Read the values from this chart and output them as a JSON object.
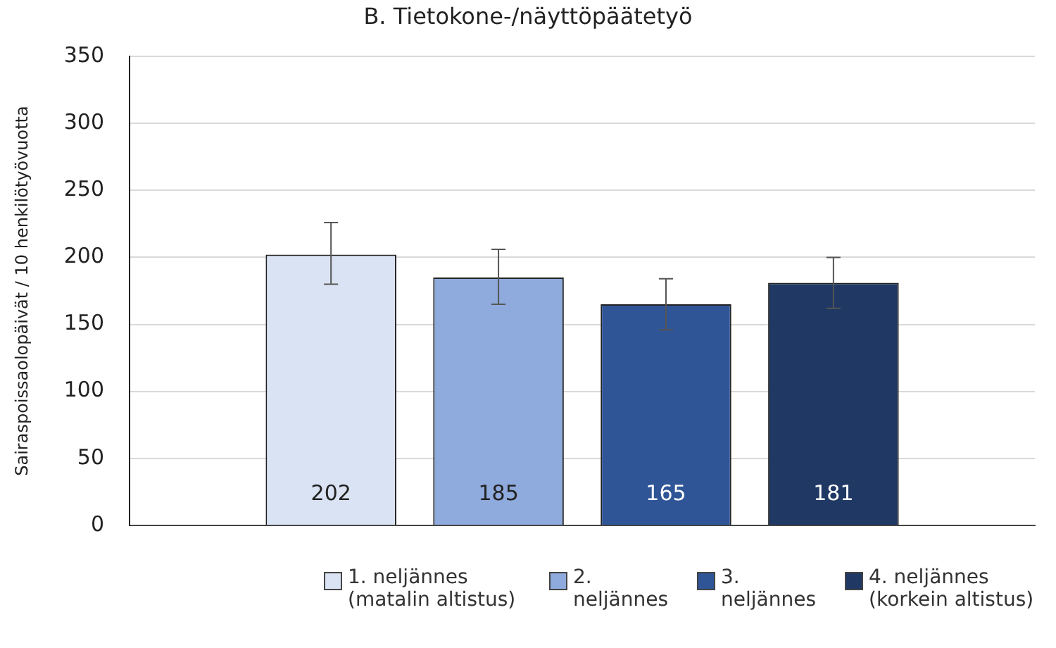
{
  "chart_data": {
    "type": "bar",
    "title": "B. Tietokone-/näyttöpäätetyö",
    "ylabel": "Sairaspoissaolopäivät / 10 henkilötyövuotta",
    "categories": [
      null
    ],
    "series": [
      {
        "name": "1. neljännes (matalin altistus)",
        "color": "#dae3f3",
        "values": [
          202
        ],
        "errors": [
          [
            180,
            226
          ]
        ]
      },
      {
        "name": "2. neljännes",
        "color": "#8faadc",
        "values": [
          185
        ],
        "errors": [
          [
            165,
            206
          ]
        ]
      },
      {
        "name": "3. neljännes",
        "color": "#2f5597",
        "values": [
          165
        ],
        "errors": [
          [
            146,
            184
          ]
        ]
      },
      {
        "name": "4. neljännes (korkein altistus)",
        "color": "#203864",
        "values": [
          181
        ],
        "errors": [
          [
            162,
            200
          ]
        ]
      }
    ],
    "ylim": [
      0,
      350
    ],
    "yticks": [
      0,
      50,
      100,
      150,
      200,
      250,
      300,
      350
    ],
    "grid": "y",
    "legend": "bottom",
    "data_labels": true,
    "tick_labels": "y"
  }
}
